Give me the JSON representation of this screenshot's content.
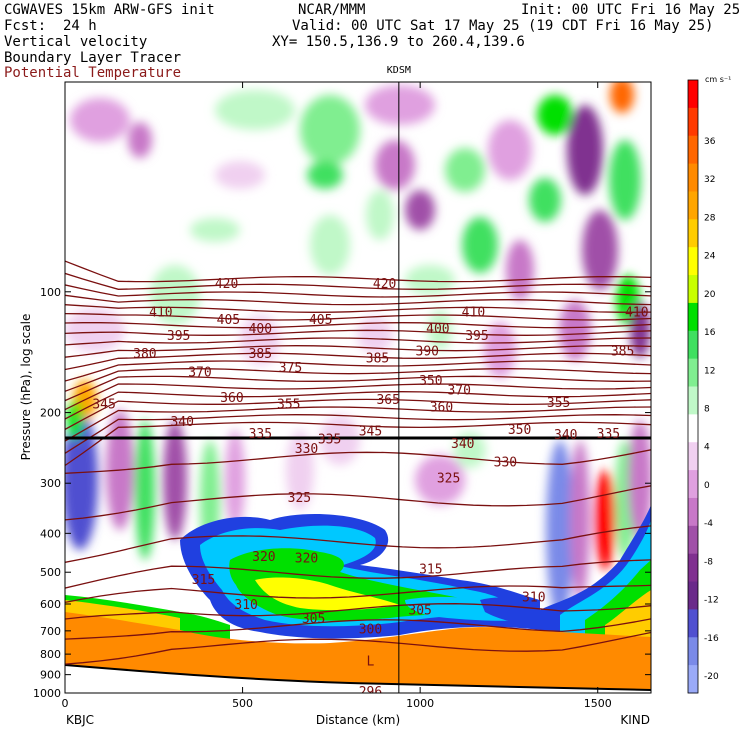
{
  "header": {
    "model_line": "CGWAVES 15km ARW-GFS init",
    "org": "NCAR/MMM",
    "init": "Init: 00 UTC Fri 16 May 25",
    "fcst": "Fcst:  24 h",
    "valid": "Valid: 00 UTC Sat 17 May 25 (19 CDT Fri 16 May 25)",
    "field1": "Vertical velocity",
    "xy": "XY= 150.5,136.9 to 260.4,139.6",
    "field2": "Boundary Layer Tracer",
    "field3": "Potential Temperature"
  },
  "colors": {
    "theta": "#7a1010",
    "field3_text": "#8b1a1a"
  },
  "chart_data": {
    "type": "heatmap",
    "ylabel": "Pressure (hPa), log scale",
    "xlabel": "Distance (km)",
    "x_ticks": [
      0,
      500,
      1000,
      1500
    ],
    "xlim": [
      0,
      1650
    ],
    "y_ticks": [
      100,
      200,
      300,
      400,
      500,
      600,
      700,
      800,
      900,
      1000
    ],
    "ylim": [
      1000,
      30
    ],
    "log_scale_y": true,
    "station_left": "KBJC",
    "station_right": "KIND",
    "station_mid": "KDSM",
    "station_mid_km": 940,
    "colorbar": {
      "unit": "cm s⁻¹",
      "tick_labels": [
        36,
        32,
        28,
        24,
        20,
        16,
        12,
        8,
        4,
        0,
        -4,
        -8,
        -12,
        -16,
        -20
      ],
      "colors": [
        "#ff0000",
        "#ff3a00",
        "#ff6600",
        "#ff8a00",
        "#ffa500",
        "#ffcc00",
        "#ffff00",
        "#c8ff00",
        "#00e000",
        "#40e060",
        "#80ee90",
        "#c0f8c8",
        "#ffffff",
        "#f0d0f0",
        "#e0a0e0",
        "#c878c8",
        "#a050a8",
        "#803090",
        "#6a2a8a",
        "#5050d0",
        "#7a8ae8",
        "#9aaaf8"
      ]
    },
    "theta_levels": [
      {
        "label": "420",
        "x": 455,
        "p": 95
      },
      {
        "label": "420",
        "x": 900,
        "p": 95
      },
      {
        "label": "410",
        "x": 270,
        "p": 112
      },
      {
        "label": "410",
        "x": 1150,
        "p": 112
      },
      {
        "label": "410",
        "x": 1610,
        "p": 112
      },
      {
        "label": "405",
        "x": 460,
        "p": 117
      },
      {
        "label": "405",
        "x": 720,
        "p": 117
      },
      {
        "label": "400",
        "x": 550,
        "p": 123
      },
      {
        "label": "400",
        "x": 1050,
        "p": 123
      },
      {
        "label": "395",
        "x": 320,
        "p": 128
      },
      {
        "label": "395",
        "x": 1160,
        "p": 128
      },
      {
        "label": "390",
        "x": 1020,
        "p": 140
      },
      {
        "label": "385",
        "x": 550,
        "p": 142
      },
      {
        "label": "385",
        "x": 880,
        "p": 146
      },
      {
        "label": "385",
        "x": 1570,
        "p": 140
      },
      {
        "label": "380",
        "x": 225,
        "p": 142
      },
      {
        "label": "375",
        "x": 635,
        "p": 154
      },
      {
        "label": "370",
        "x": 380,
        "p": 158
      },
      {
        "label": "370",
        "x": 1110,
        "p": 175
      },
      {
        "label": "365",
        "x": 910,
        "p": 185
      },
      {
        "label": "360",
        "x": 470,
        "p": 183
      },
      {
        "label": "360",
        "x": 1060,
        "p": 193
      },
      {
        "label": "355",
        "x": 630,
        "p": 190
      },
      {
        "label": "355",
        "x": 1390,
        "p": 188
      },
      {
        "label": "350",
        "x": 1030,
        "p": 166
      },
      {
        "label": "350",
        "x": 1280,
        "p": 220
      },
      {
        "label": "345",
        "x": 110,
        "p": 190
      },
      {
        "label": "345",
        "x": 860,
        "p": 222
      },
      {
        "label": "340",
        "x": 330,
        "p": 210
      },
      {
        "label": "340",
        "x": 1120,
        "p": 238
      },
      {
        "label": "340",
        "x": 1410,
        "p": 226
      },
      {
        "label": "335",
        "x": 550,
        "p": 225
      },
      {
        "label": "335",
        "x": 745,
        "p": 232
      },
      {
        "label": "335",
        "x": 1530,
        "p": 225
      },
      {
        "label": "330",
        "x": 680,
        "p": 245
      },
      {
        "label": "330",
        "x": 1240,
        "p": 265
      },
      {
        "label": "325",
        "x": 1080,
        "p": 290
      },
      {
        "label": "325",
        "x": 660,
        "p": 325
      },
      {
        "label": "320",
        "x": 560,
        "p": 455
      },
      {
        "label": "320",
        "x": 680,
        "p": 460
      },
      {
        "label": "315",
        "x": 390,
        "p": 520
      },
      {
        "label": "315",
        "x": 1030,
        "p": 490
      },
      {
        "label": "310",
        "x": 510,
        "p": 600
      },
      {
        "label": "310",
        "x": 1320,
        "p": 575
      },
      {
        "label": "305",
        "x": 700,
        "p": 650
      },
      {
        "label": "305",
        "x": 1000,
        "p": 620
      },
      {
        "label": "300",
        "x": 860,
        "p": 690
      },
      {
        "label": "296",
        "x": 860,
        "p": 990
      }
    ],
    "low_label": "L",
    "low_label_x": 860,
    "low_label_p": 830
  }
}
